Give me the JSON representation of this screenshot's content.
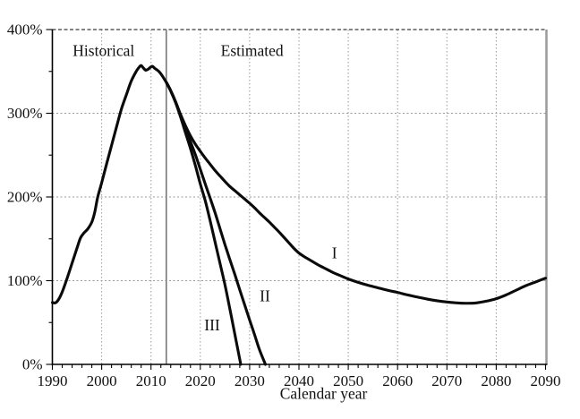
{
  "chart_data": {
    "type": "line",
    "title": "",
    "xlabel": "Calendar year",
    "ylabel": "",
    "x_range": [
      1990,
      2090
    ],
    "y_range": [
      0,
      400
    ],
    "y_unit": "percent",
    "grid": true,
    "x_major_ticks": [
      1990,
      2000,
      2010,
      2020,
      2030,
      2040,
      2050,
      2060,
      2070,
      2080,
      2090
    ],
    "x_tick_labels": [
      "1990",
      "2000",
      "2010",
      "2020",
      "2030",
      "2040",
      "2050",
      "2060",
      "2070",
      "2080",
      "2090"
    ],
    "x_minor_tick_step": 2,
    "y_major_ticks": [
      0,
      100,
      200,
      300,
      400
    ],
    "y_tick_labels": [
      "0%",
      "100%",
      "200%",
      "300%",
      "400%"
    ],
    "y_minor_ticks": [
      50,
      150,
      250,
      350
    ],
    "x_gridline_years": [
      2000,
      2010,
      2020,
      2030,
      2040,
      2050,
      2060,
      2070,
      2080
    ],
    "y_gridline_values": [
      100,
      200,
      300,
      400
    ],
    "divider_year": 2013.1,
    "colors": {
      "curve": "#0a0a0a",
      "grid": "#9a9a9a",
      "top_border": "#3a3a3a",
      "right_border": "#9a9a9a",
      "divider": "#787878",
      "axis": "#000000",
      "text": "#111111"
    },
    "annotations": {
      "historical": {
        "label": "Historical",
        "year": 2000.4,
        "pct": 375
      },
      "estimated": {
        "label": "Estimated",
        "year": 2030.5,
        "pct": 375
      },
      "series_I": {
        "label": "I",
        "year": 2047.2,
        "pct": 133
      },
      "series_II": {
        "label": "II",
        "year": 2033.1,
        "pct": 82
      },
      "series_III": {
        "label": "III",
        "year": 2022.4,
        "pct": 47
      }
    },
    "series": [
      {
        "name": "Historical",
        "points": [
          [
            1990,
            74
          ],
          [
            1990.6,
            73.5
          ],
          [
            1991.2,
            77
          ],
          [
            1992,
            86.5
          ],
          [
            1993,
            103
          ],
          [
            1994,
            121
          ],
          [
            1995,
            139
          ],
          [
            1995.7,
            151
          ],
          [
            1996.4,
            157
          ],
          [
            1997.2,
            162
          ],
          [
            1998,
            170
          ],
          [
            1998.6,
            182
          ],
          [
            1999.2,
            200
          ],
          [
            2000,
            217
          ],
          [
            2001,
            239.5
          ],
          [
            2002,
            261.5
          ],
          [
            2003,
            283.5
          ],
          [
            2004,
            305
          ],
          [
            2005,
            322
          ],
          [
            2006,
            338.5
          ],
          [
            2007,
            350
          ],
          [
            2007.6,
            355
          ],
          [
            2008,
            357
          ],
          [
            2008.4,
            354.5
          ],
          [
            2008.9,
            351.5
          ],
          [
            2009.4,
            352.5
          ],
          [
            2009.9,
            355
          ],
          [
            2010.3,
            356
          ],
          [
            2010.8,
            353.5
          ],
          [
            2011.5,
            350.5
          ],
          [
            2012.2,
            345.5
          ],
          [
            2013.15,
            336.5
          ]
        ]
      },
      {
        "name": "I",
        "points": [
          [
            2013.15,
            336.5
          ],
          [
            2014,
            327
          ],
          [
            2015,
            313.5
          ],
          [
            2016,
            298.5
          ],
          [
            2017,
            285
          ],
          [
            2018,
            273
          ],
          [
            2019,
            263
          ],
          [
            2020,
            254.5
          ],
          [
            2021,
            246.5
          ],
          [
            2022,
            239
          ],
          [
            2023,
            231.5
          ],
          [
            2024,
            225
          ],
          [
            2025,
            218.5
          ],
          [
            2026,
            212.5
          ],
          [
            2027,
            207.5
          ],
          [
            2028,
            202.5
          ],
          [
            2029,
            197.5
          ],
          [
            2030,
            192.5
          ],
          [
            2031,
            187
          ],
          [
            2032,
            181
          ],
          [
            2033,
            175.5
          ],
          [
            2034,
            170
          ],
          [
            2035,
            164
          ],
          [
            2036,
            158
          ],
          [
            2037,
            151.5
          ],
          [
            2038,
            145
          ],
          [
            2039,
            138.5
          ],
          [
            2040,
            133
          ],
          [
            2041,
            129
          ],
          [
            2042,
            125.5
          ],
          [
            2043,
            122
          ],
          [
            2044,
            118.5
          ],
          [
            2045,
            115.5
          ],
          [
            2046,
            112.5
          ],
          [
            2047,
            109.5
          ],
          [
            2048,
            107
          ],
          [
            2049,
            104.5
          ],
          [
            2050,
            102
          ],
          [
            2052,
            98
          ],
          [
            2054,
            94.5
          ],
          [
            2056,
            91.5
          ],
          [
            2058,
            88.5
          ],
          [
            2060,
            86
          ],
          [
            2062,
            83
          ],
          [
            2064,
            80.5
          ],
          [
            2066,
            78
          ],
          [
            2068,
            76
          ],
          [
            2070,
            74.5
          ],
          [
            2072,
            73.5
          ],
          [
            2074,
            73
          ],
          [
            2076,
            73.5
          ],
          [
            2078,
            75.5
          ],
          [
            2080,
            78.5
          ],
          [
            2082,
            83
          ],
          [
            2084,
            88.5
          ],
          [
            2086,
            94
          ],
          [
            2088,
            98.5
          ],
          [
            2090,
            103
          ]
        ]
      },
      {
        "name": "II",
        "points": [
          [
            2013.15,
            336.5
          ],
          [
            2014,
            327
          ],
          [
            2015,
            313.5
          ],
          [
            2016,
            297
          ],
          [
            2017,
            281
          ],
          [
            2018,
            266
          ],
          [
            2019,
            250.5
          ],
          [
            2020,
            233
          ],
          [
            2021,
            215.5
          ],
          [
            2022,
            198.5
          ],
          [
            2023,
            181
          ],
          [
            2024,
            162
          ],
          [
            2025,
            143
          ],
          [
            2026,
            125
          ],
          [
            2027,
            107.5
          ],
          [
            2028,
            89
          ],
          [
            2029,
            71
          ],
          [
            2030,
            53
          ],
          [
            2031,
            35.5
          ],
          [
            2032,
            17.5
          ],
          [
            2033.2,
            0
          ]
        ]
      },
      {
        "name": "III",
        "points": [
          [
            2013.15,
            336.5
          ],
          [
            2014,
            326.5
          ],
          [
            2015,
            312.5
          ],
          [
            2016,
            295.5
          ],
          [
            2017,
            276.5
          ],
          [
            2018,
            258
          ],
          [
            2019,
            237.5
          ],
          [
            2020,
            215.5
          ],
          [
            2021,
            195.5
          ],
          [
            2022,
            171.5
          ],
          [
            2023,
            146
          ],
          [
            2024,
            120.5
          ],
          [
            2025,
            95
          ],
          [
            2026,
            66
          ],
          [
            2027,
            36
          ],
          [
            2028.2,
            0
          ]
        ]
      }
    ]
  }
}
